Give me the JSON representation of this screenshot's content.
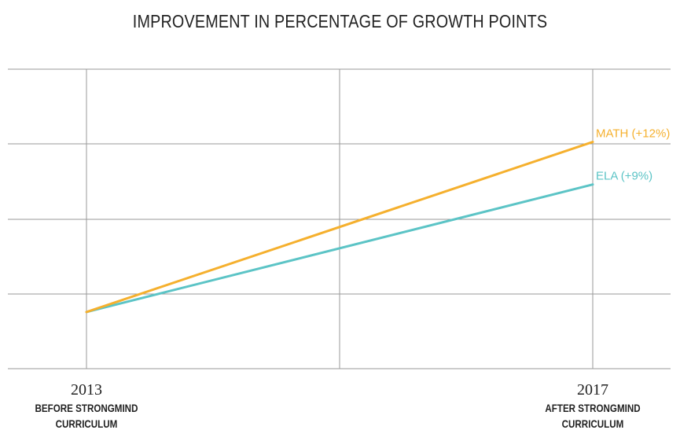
{
  "chart_data": {
    "type": "line",
    "title": "IMPROVEMENT IN PERCENTAGE OF GROWTH POINTS",
    "x": [
      2013,
      2017
    ],
    "x_tick_labels": [
      {
        "year": "2013",
        "line1": "BEFORE STRONGMIND",
        "line2": "CURRICULUM"
      },
      {
        "year": "2017",
        "line1": "AFTER STRONGMIND",
        "line2": "CURRICULUM"
      }
    ],
    "ylim": [
      0,
      16
    ],
    "grid": true,
    "series": [
      {
        "name": "MATH (+12%)",
        "color": "#f5b02e",
        "values": [
          4,
          16
        ]
      },
      {
        "name": "ELA (+9%)",
        "color": "#5cc4c6",
        "values": [
          4,
          13
        ]
      }
    ]
  }
}
